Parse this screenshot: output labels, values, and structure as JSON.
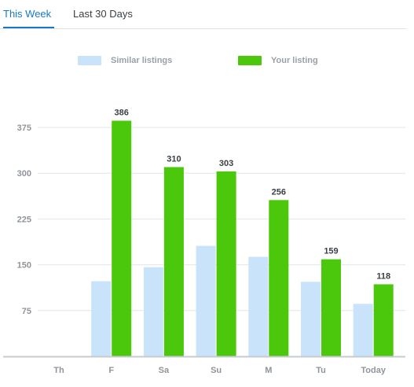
{
  "tabs": [
    {
      "label": "This Week",
      "active": true
    },
    {
      "label": "Last 30 Days",
      "active": false
    }
  ],
  "colors": {
    "similar": "#c8e3fa",
    "yours": "#4cc80c",
    "accent": "#1479c9",
    "grid": "#e2e5e8",
    "axis": "#c7cbcf"
  },
  "chart_data": {
    "type": "bar",
    "categories": [
      "Th",
      "F",
      "Sa",
      "Su",
      "M",
      "Tu",
      "Today"
    ],
    "series": [
      {
        "name": "Similar listings",
        "values": [
          null,
          123,
          146,
          181,
          163,
          122,
          86
        ],
        "labeled": false
      },
      {
        "name": "Your listing",
        "values": [
          null,
          386,
          310,
          303,
          256,
          159,
          118
        ],
        "labeled": true
      }
    ],
    "yticks": [
      75,
      150,
      225,
      300,
      375
    ],
    "ylim": [
      0,
      400
    ],
    "grid": true,
    "legend_position": "top"
  }
}
